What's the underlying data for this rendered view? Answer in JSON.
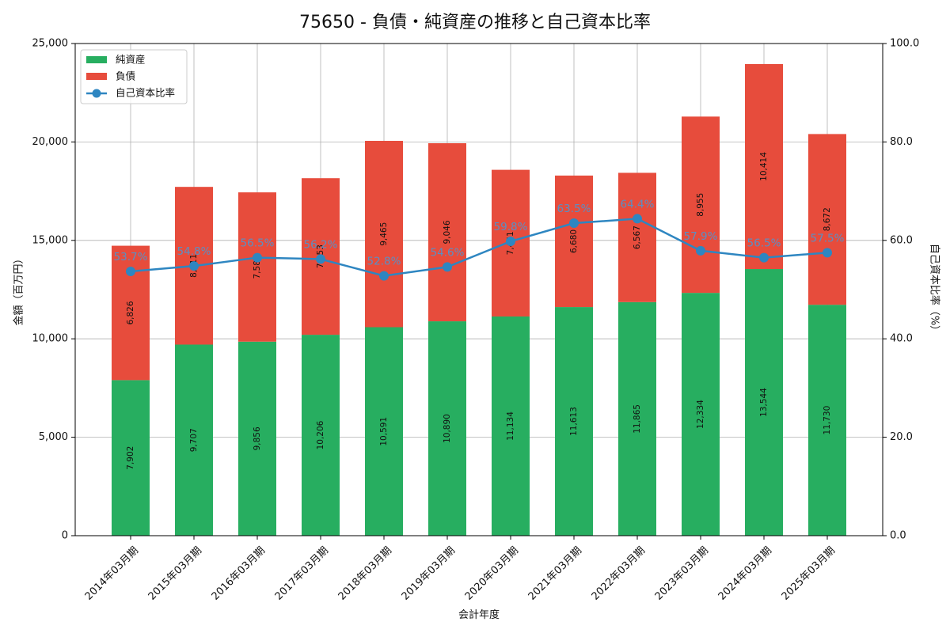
{
  "chart_data": {
    "type": "bar",
    "stacked": true,
    "title": "75650 - 負債・純資産の推移と自己資本比率",
    "xlabel": "会計年度",
    "ylabel": "金額（百万円）",
    "y2label": "自己資本比率（%）",
    "ylim": [
      0,
      25000
    ],
    "y2lim": [
      0,
      100
    ],
    "yticks": [
      "0",
      "5,000",
      "10,000",
      "15,000",
      "20,000",
      "25,000"
    ],
    "y2ticks": [
      "0.0",
      "20.0",
      "40.0",
      "60.0",
      "80.0",
      "100.0"
    ],
    "grid": true,
    "legend_position": "top-left",
    "categories": [
      "2014年03月期",
      "2015年03月期",
      "2016年03月期",
      "2017年03月期",
      "2018年03月期",
      "2019年03月期",
      "2020年03月期",
      "2021年03月期",
      "2022年03月期",
      "2023年03月期",
      "2024年03月期",
      "2025年03月期"
    ],
    "series": [
      {
        "name": "純資産",
        "kind": "bar",
        "axis": "left",
        "color": "#27ae60",
        "values": [
          7902,
          9707,
          9856,
          10206,
          10591,
          10890,
          11134,
          11613,
          11865,
          12334,
          13544,
          11730
        ],
        "labels": [
          "7,902",
          "9,707",
          "9,856",
          "10,206",
          "10,591",
          "10,890",
          "11,134",
          "11,613",
          "11,865",
          "12,334",
          "13,544",
          "11,730"
        ]
      },
      {
        "name": "負債",
        "kind": "bar",
        "axis": "left",
        "color": "#e74c3c",
        "values": [
          6826,
          8011,
          7583,
          7953,
          9465,
          9046,
          7451,
          6680,
          6567,
          8955,
          10414,
          8672
        ],
        "labels": [
          "6,826",
          "8,011",
          "7,583",
          "7,953",
          "9,465",
          "9,046",
          "7,451",
          "6,680",
          "6,567",
          "8,955",
          "10,414",
          "8,672"
        ]
      },
      {
        "name": "自己資本比率",
        "kind": "line",
        "axis": "right",
        "color": "#2e86c1",
        "values": [
          53.7,
          54.8,
          56.5,
          56.2,
          52.8,
          54.6,
          59.8,
          63.5,
          64.4,
          57.9,
          56.5,
          57.5
        ],
        "labels": [
          "53.7%",
          "54.8%",
          "56.5%",
          "56.2%",
          "52.8%",
          "54.6%",
          "59.8%",
          "63.5%",
          "64.4%",
          "57.9%",
          "56.5%",
          "57.5%"
        ]
      }
    ]
  }
}
